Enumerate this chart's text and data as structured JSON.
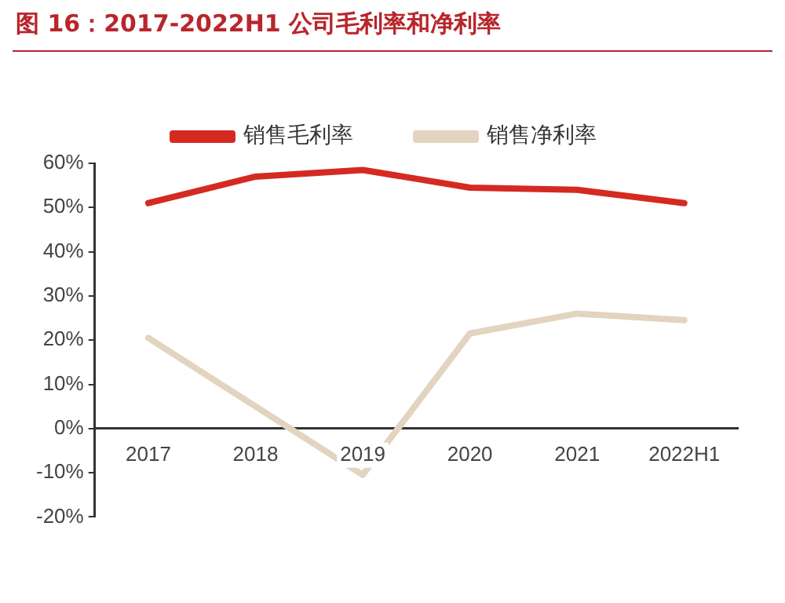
{
  "chart_data": {
    "type": "line",
    "title": "图 16：2017-2022H1 公司毛利率和净利率",
    "categories": [
      "2017",
      "2018",
      "2019",
      "2020",
      "2021",
      "2022H1"
    ],
    "series": [
      {
        "name": "销售毛利率",
        "color": "#d42a22",
        "values": [
          51,
          57,
          58.5,
          54.5,
          54,
          51
        ]
      },
      {
        "name": "销售净利率",
        "color": "#e2d4bf",
        "values": [
          20.5,
          5,
          -10.5,
          21.5,
          26,
          24.5
        ]
      }
    ],
    "ylim": [
      -20,
      60
    ],
    "yticks": [
      {
        "value": -20,
        "label": "-20%"
      },
      {
        "value": -10,
        "label": "-10%"
      },
      {
        "value": 0,
        "label": "0%"
      },
      {
        "value": 10,
        "label": "10%"
      },
      {
        "value": 20,
        "label": "20%"
      },
      {
        "value": 30,
        "label": "30%"
      },
      {
        "value": 40,
        "label": "40%"
      },
      {
        "value": 50,
        "label": "50%"
      },
      {
        "value": 60,
        "label": "60%"
      }
    ],
    "grid": false,
    "legend": "top",
    "marker": "none",
    "line_style": "solid"
  }
}
